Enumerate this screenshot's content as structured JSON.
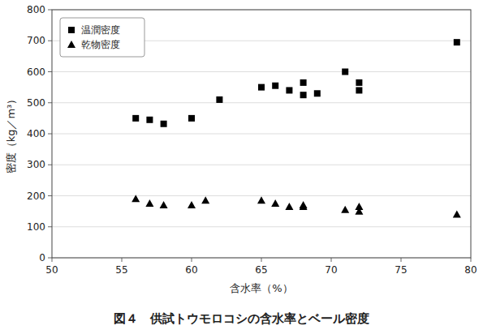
{
  "chart_data": {
    "type": "scatter",
    "title": "図４　供試トウモロコシの含水率とベール密度",
    "xlabel": "含水率（%）",
    "ylabel": "密度（kg／m³）",
    "xlim": [
      50,
      80
    ],
    "ylim": [
      0,
      800
    ],
    "xticks": [
      50,
      55,
      60,
      65,
      70,
      75,
      80
    ],
    "yticks": [
      0,
      100,
      200,
      300,
      400,
      500,
      600,
      700,
      800
    ],
    "grid": "y",
    "legend": "upper left",
    "series": [
      {
        "name": "温潤密度",
        "color": "black",
        "marker": "square",
        "x": [
          56,
          57,
          58,
          60,
          62,
          65,
          66,
          67,
          68,
          68,
          69,
          71,
          72,
          72,
          79
        ],
        "values": [
          450,
          445,
          432,
          450,
          510,
          550,
          555,
          540,
          525,
          565,
          530,
          600,
          540,
          565,
          695
        ]
      },
      {
        "name": "乾物密度",
        "color": "black",
        "marker": "triangle",
        "x": [
          56,
          57,
          58,
          60,
          61,
          65,
          66,
          67,
          68,
          68,
          71,
          72,
          72,
          79
        ],
        "values": [
          190,
          175,
          170,
          170,
          185,
          185,
          175,
          165,
          170,
          165,
          155,
          150,
          165,
          140
        ]
      }
    ]
  }
}
